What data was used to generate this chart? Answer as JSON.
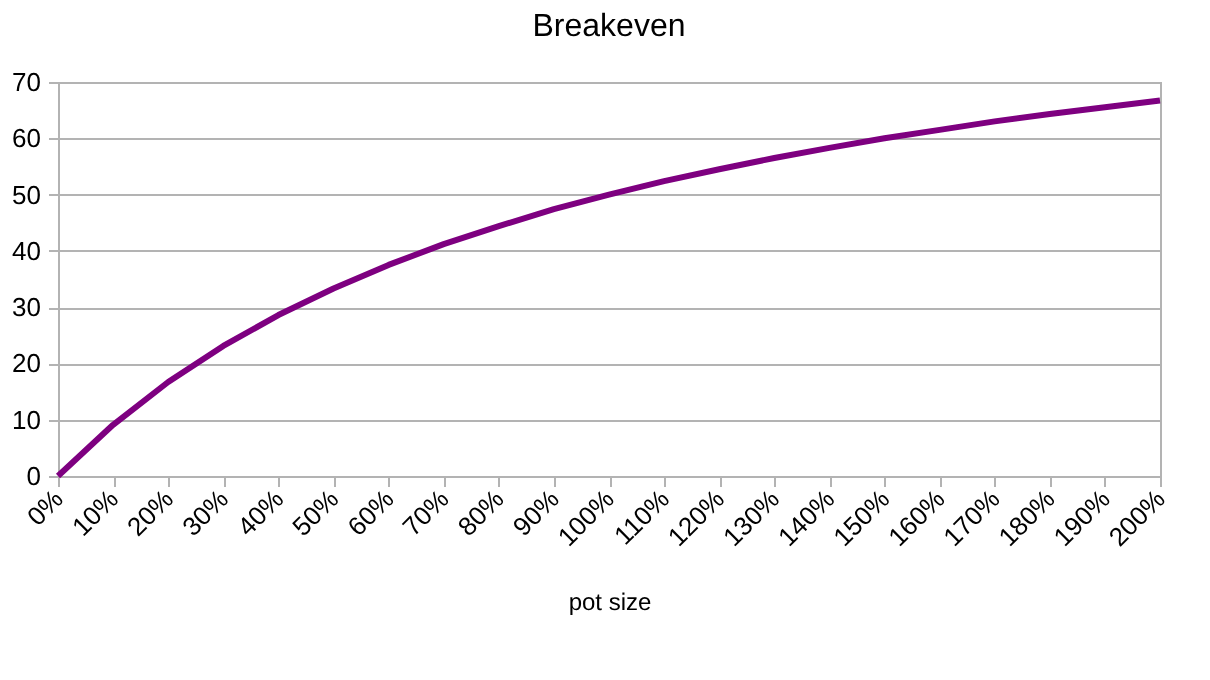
{
  "chart_data": {
    "type": "line",
    "title": "Breakeven",
    "xlabel": "pot size",
    "categories": [
      "0%",
      "10%",
      "20%",
      "30%",
      "40%",
      "50%",
      "60%",
      "70%",
      "80%",
      "90%",
      "100%",
      "110%",
      "120%",
      "130%",
      "140%",
      "150%",
      "160%",
      "170%",
      "180%",
      "190%",
      "200%"
    ],
    "series": [
      {
        "color": "#7e0080",
        "values": [
          0,
          9.1,
          16.7,
          23.1,
          28.6,
          33.3,
          37.5,
          41.2,
          44.4,
          47.4,
          50,
          52.4,
          54.5,
          56.5,
          58.3,
          60,
          61.5,
          63,
          64.3,
          65.5,
          66.7
        ]
      }
    ],
    "ylim": [
      0,
      70
    ],
    "yticks": [
      0,
      10,
      20,
      30,
      40,
      50,
      60,
      70
    ],
    "grid": "y",
    "marker": "none",
    "line_style": "solid"
  }
}
